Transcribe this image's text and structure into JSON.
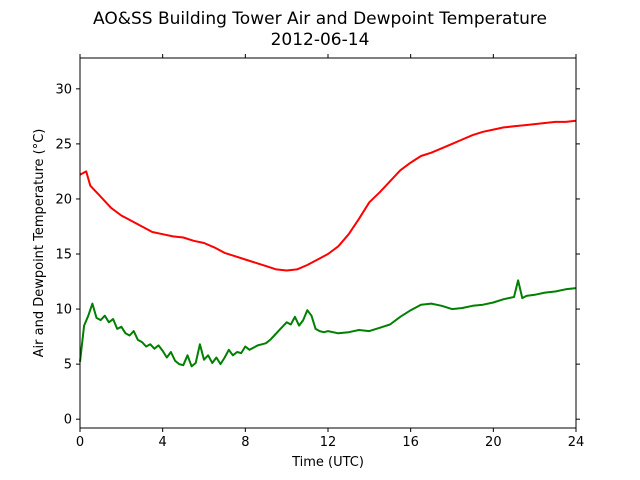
{
  "chart_data": {
    "type": "line",
    "title_line1": "AO&SS Building Tower Air and Dewpoint Temperature",
    "title_line2": "2012-06-14",
    "xlabel": "Time (UTC)",
    "ylabel": "Air and Dewpoint Temperature (°C)",
    "xlim": [
      0,
      24
    ],
    "ylim": [
      -0.8,
      32.8
    ],
    "xticks": [
      0,
      4,
      8,
      12,
      16,
      20,
      24
    ],
    "yticks": [
      0,
      5,
      10,
      15,
      20,
      25,
      30
    ],
    "grid": false,
    "legend": "none",
    "series": [
      {
        "color": "#ff0000",
        "x": [
          0,
          0.3,
          0.5,
          1,
          1.5,
          2,
          2.5,
          3,
          3.5,
          4,
          4.5,
          5,
          5.5,
          6,
          6.5,
          7,
          7.5,
          8,
          8.5,
          9,
          9.5,
          10,
          10.5,
          11,
          11.5,
          12,
          12.5,
          13,
          13.5,
          14,
          14.5,
          15,
          15.5,
          16,
          16.5,
          17,
          17.5,
          18,
          18.5,
          19,
          19.5,
          20,
          20.5,
          21,
          21.5,
          22,
          22.5,
          23,
          23.5,
          24
        ],
        "y": [
          22.2,
          22.5,
          21.2,
          20.2,
          19.2,
          18.5,
          18.0,
          17.5,
          17.0,
          16.8,
          16.6,
          16.5,
          16.2,
          16.0,
          15.6,
          15.1,
          14.8,
          14.5,
          14.2,
          13.9,
          13.6,
          13.5,
          13.6,
          14.0,
          14.5,
          15.0,
          15.7,
          16.8,
          18.2,
          19.7,
          20.6,
          21.6,
          22.6,
          23.3,
          23.9,
          24.2,
          24.6,
          25.0,
          25.4,
          25.8,
          26.1,
          26.3,
          26.5,
          26.6,
          26.7,
          26.8,
          26.9,
          27.0,
          27.0,
          27.1
        ]
      },
      {
        "color": "#008000",
        "x": [
          0,
          0.2,
          0.4,
          0.6,
          0.8,
          1,
          1.2,
          1.4,
          1.6,
          1.8,
          2,
          2.2,
          2.4,
          2.6,
          2.8,
          3,
          3.2,
          3.4,
          3.6,
          3.8,
          4,
          4.2,
          4.4,
          4.6,
          4.8,
          5,
          5.2,
          5.4,
          5.6,
          5.8,
          6,
          6.2,
          6.4,
          6.6,
          6.8,
          7,
          7.2,
          7.4,
          7.6,
          7.8,
          8,
          8.2,
          8.4,
          8.6,
          8.8,
          9,
          9.2,
          9.4,
          9.6,
          9.8,
          10,
          10.2,
          10.4,
          10.6,
          10.8,
          11,
          11.2,
          11.4,
          11.6,
          11.8,
          12,
          12.5,
          13,
          13.5,
          14,
          14.5,
          15,
          15.5,
          16,
          16.5,
          17,
          17.5,
          18,
          18.5,
          19,
          19.5,
          20,
          20.5,
          21,
          21.2,
          21.4,
          21.6,
          22,
          22.5,
          23,
          23.5,
          24
        ],
        "y": [
          5.2,
          8.5,
          9.4,
          10.5,
          9.2,
          9.0,
          9.4,
          8.8,
          9.1,
          8.2,
          8.4,
          7.8,
          7.6,
          8.0,
          7.2,
          7.0,
          6.6,
          6.8,
          6.4,
          6.7,
          6.2,
          5.6,
          6.1,
          5.3,
          5.0,
          4.9,
          5.8,
          4.8,
          5.1,
          6.8,
          5.4,
          5.8,
          5.1,
          5.6,
          5.0,
          5.6,
          6.3,
          5.8,
          6.1,
          6.0,
          6.6,
          6.3,
          6.5,
          6.7,
          6.8,
          6.9,
          7.2,
          7.6,
          8.0,
          8.4,
          8.8,
          8.6,
          9.3,
          8.5,
          9.0,
          9.9,
          9.4,
          8.2,
          8.0,
          7.9,
          8.0,
          7.8,
          7.9,
          8.1,
          8.0,
          8.3,
          8.6,
          9.3,
          9.9,
          10.4,
          10.5,
          10.3,
          10.0,
          10.1,
          10.3,
          10.4,
          10.6,
          10.9,
          11.1,
          12.6,
          11.0,
          11.2,
          11.3,
          11.5,
          11.6,
          11.8,
          11.9
        ]
      }
    ]
  }
}
